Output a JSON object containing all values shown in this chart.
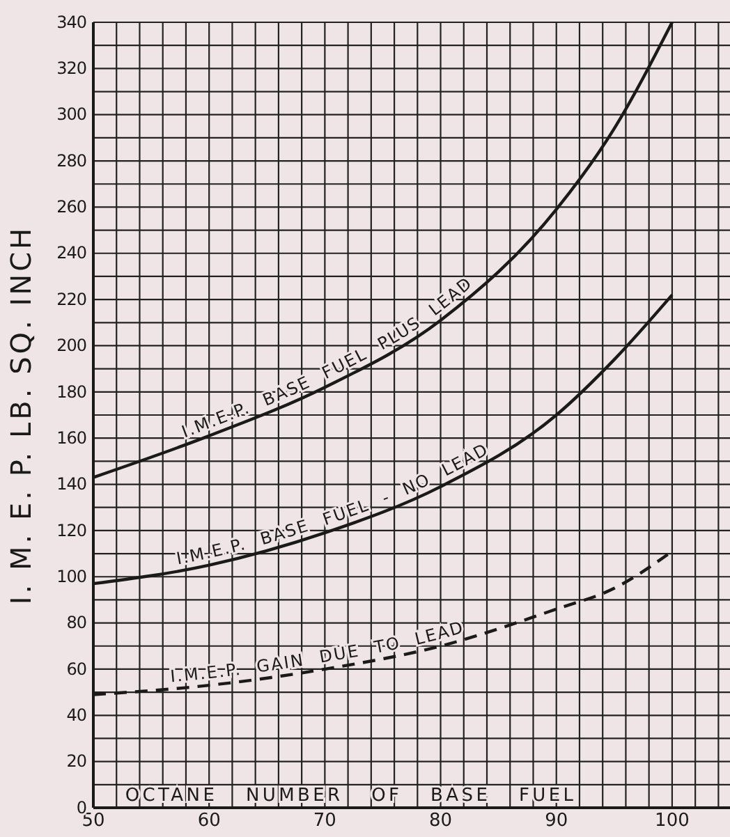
{
  "chart_data": {
    "type": "line",
    "xlabel": "OCTANE NUMBER OF BASE FUEL",
    "ylabel": "I. M. E. P. LB. SQ. INCH",
    "x": [
      50,
      60,
      70,
      80,
      90,
      95,
      100
    ],
    "series": [
      {
        "name": "I.M.E.P. BASE FUEL PLUS LEAD",
        "color": "#1a1a1a",
        "line_style": "solid",
        "values": [
          143,
          161,
          182,
          211,
          259,
          294,
          340
        ]
      },
      {
        "name": "I.M.E.P. BASE FUEL - NO LEAD",
        "color": "#1a1a1a",
        "line_style": "solid",
        "values": [
          97,
          105,
          119,
          139,
          170,
          194,
          222
        ]
      },
      {
        "name": "I.M.E.P. GAIN DUE TO LEAD",
        "color": "#1a1a1a",
        "line_style": "dashed",
        "values": [
          49,
          53,
          60,
          70,
          86,
          95,
          111
        ]
      }
    ],
    "xlim": [
      50,
      105
    ],
    "xticks": [
      50,
      {
        "value": 52,
        "label": null
      },
      {
        "value": 54,
        "label": null
      },
      {
        "value": 56,
        "label": null
      },
      {
        "value": 58,
        "label": null
      },
      60,
      {
        "value": 62,
        "label": null
      },
      {
        "value": 64,
        "label": null
      },
      {
        "value": 66,
        "label": null
      },
      {
        "value": 68,
        "label": null
      },
      70,
      {
        "value": 72,
        "label": null
      },
      {
        "value": 74,
        "label": null
      },
      {
        "value": 76,
        "label": null
      },
      {
        "value": 78,
        "label": null
      },
      80,
      {
        "value": 82,
        "label": null
      },
      {
        "value": 84,
        "label": null
      },
      {
        "value": 86,
        "label": null
      },
      {
        "value": 88,
        "label": null
      },
      90,
      {
        "value": 92,
        "label": null
      },
      {
        "value": 94,
        "label": null
      },
      {
        "value": 96,
        "label": null
      },
      {
        "value": 98,
        "label": null
      },
      100,
      {
        "value": 102,
        "label": null
      },
      {
        "value": 104,
        "label": null
      }
    ],
    "ylim": [
      0,
      340
    ],
    "yticks": [
      0,
      {
        "value": 10,
        "label": null
      },
      20,
      {
        "value": 30,
        "label": null
      },
      40,
      {
        "value": 50,
        "label": null
      },
      60,
      {
        "value": 70,
        "label": null
      },
      80,
      {
        "value": 90,
        "label": null
      },
      100,
      {
        "value": 110,
        "label": null
      },
      120,
      {
        "value": 130,
        "label": null
      },
      140,
      {
        "value": 150,
        "label": null
      },
      160,
      {
        "value": 170,
        "label": null
      },
      180,
      {
        "value": 190,
        "label": null
      },
      200,
      {
        "value": 210,
        "label": null
      },
      220,
      {
        "value": 230,
        "label": null
      },
      240,
      {
        "value": 250,
        "label": null
      },
      260,
      {
        "value": 270,
        "label": null
      },
      280,
      {
        "value": 290,
        "label": null
      },
      300,
      {
        "value": 310,
        "label": null
      },
      320,
      {
        "value": 330,
        "label": null
      },
      340
    ],
    "grid": true,
    "legend": false,
    "marker": "none"
  }
}
